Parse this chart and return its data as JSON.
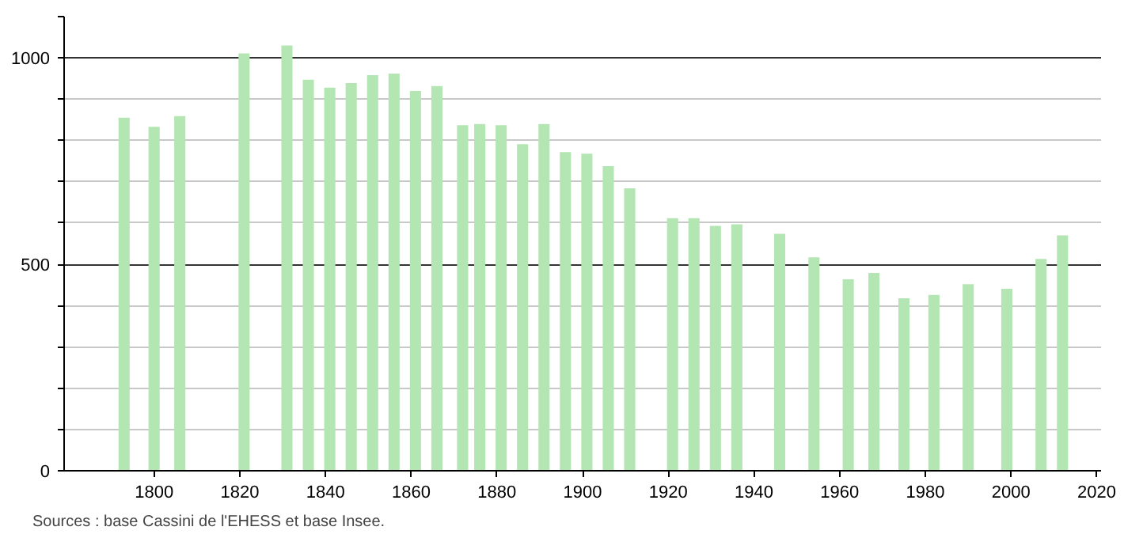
{
  "chart_data": {
    "type": "bar",
    "x": [
      1793,
      1800,
      1806,
      1821,
      1831,
      1836,
      1841,
      1846,
      1851,
      1856,
      1861,
      1866,
      1872,
      1876,
      1881,
      1886,
      1891,
      1896,
      1901,
      1906,
      1911,
      1921,
      1926,
      1931,
      1936,
      1946,
      1954,
      1962,
      1968,
      1975,
      1982,
      1990,
      1999,
      2007,
      2012
    ],
    "values": [
      855,
      833,
      859,
      1011,
      1030,
      947,
      928,
      939,
      958,
      962,
      920,
      932,
      837,
      840,
      837,
      791,
      840,
      772,
      768,
      738,
      684,
      612,
      612,
      593,
      597,
      574,
      517,
      464,
      479,
      418,
      426,
      452,
      441,
      513,
      570
    ],
    "color": "#b3e6b3",
    "xlim": [
      1779,
      2021
    ],
    "xticks": [
      1800,
      1820,
      1840,
      1860,
      1880,
      1900,
      1920,
      1940,
      1960,
      1980,
      2000,
      2020
    ],
    "ylim": [
      0,
      1100
    ],
    "yticks": [
      0,
      {
        "value": 100,
        "label": null
      },
      {
        "value": 200,
        "label": null
      },
      {
        "value": 300,
        "label": null
      },
      {
        "value": 400,
        "label": null
      },
      500,
      {
        "value": 600,
        "label": null
      },
      {
        "value": 700,
        "label": null
      },
      {
        "value": 800,
        "label": null
      },
      {
        "value": 900,
        "label": null
      },
      1000,
      {
        "value": 1100,
        "label": null
      }
    ],
    "grid": "y",
    "annotations": [
      "Sources : base Cassini de l'EHESS et base Insee."
    ]
  }
}
